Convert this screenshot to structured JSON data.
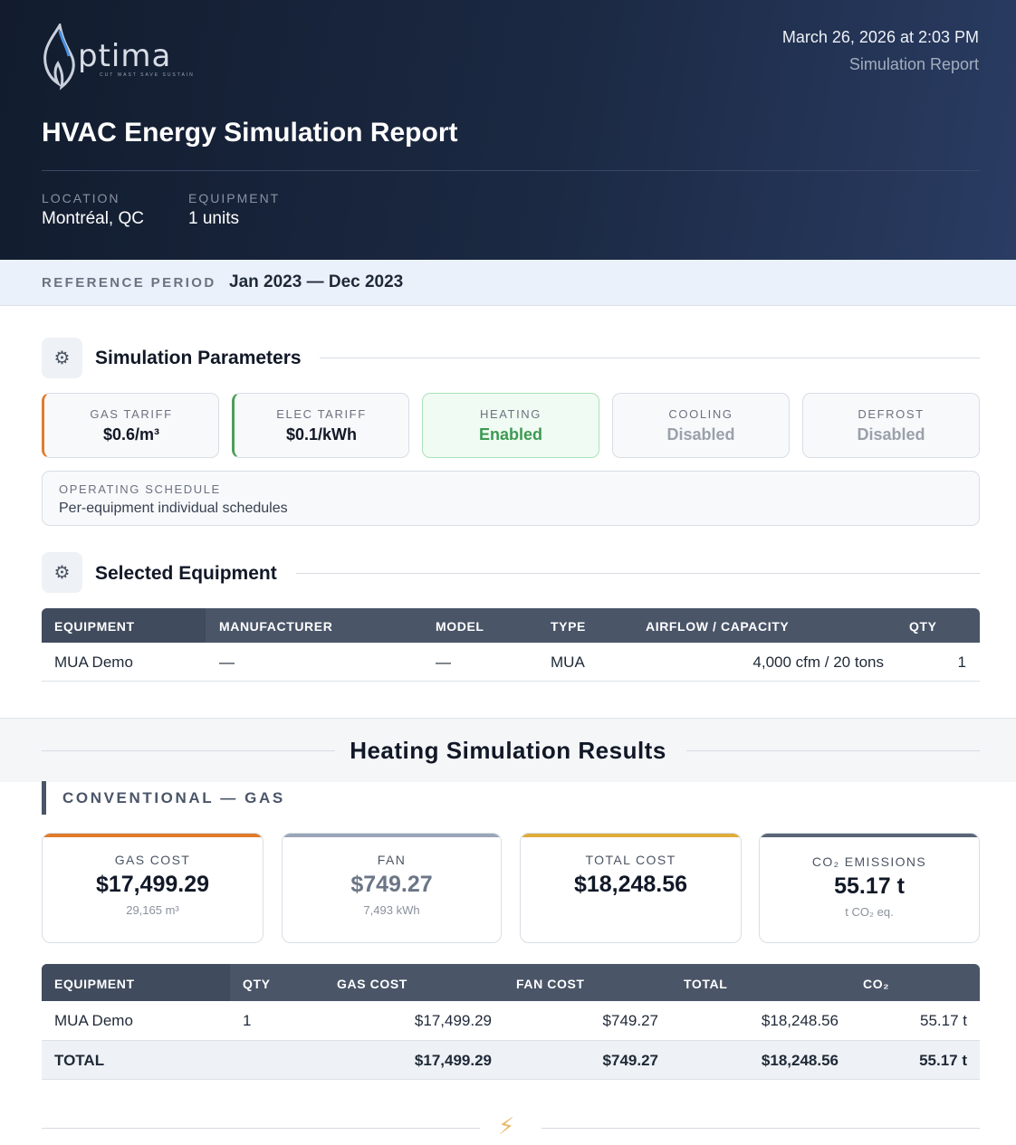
{
  "header": {
    "logo_word": "ptima",
    "logo_tagline": "CUT WAST SAVE SUSTAIN",
    "date": "March 26, 2026 at 2:03 PM",
    "subtitle": "Simulation Report",
    "title": "HVAC Energy Simulation Report",
    "location_label": "LOCATION",
    "location_value": "Montréal, QC",
    "equipment_label": "EQUIPMENT",
    "equipment_value": "1 units"
  },
  "reference": {
    "label": "REFERENCE PERIOD",
    "value": "Jan 2023 — Dec 2023"
  },
  "parameters": {
    "title": "Simulation Parameters",
    "icon": "gear-icon",
    "cards": [
      {
        "label": "GAS TARIFF",
        "value": "$0.6/m³"
      },
      {
        "label": "ELEC TARIFF",
        "value": "$0.1/kWh"
      },
      {
        "label": "HEATING",
        "value": "Enabled"
      },
      {
        "label": "COOLING",
        "value": "Disabled"
      },
      {
        "label": "DEFROST",
        "value": "Disabled"
      }
    ],
    "schedule_label": "OPERATING SCHEDULE",
    "schedule_value": "Per-equipment individual schedules",
    "colors": {
      "gas": "#e07b2b",
      "elec": "#4e9e5a",
      "enabled": "#3c9a52"
    }
  },
  "equipment": {
    "title": "Selected Equipment",
    "icon": "gear-icon",
    "columns": [
      "EQUIPMENT",
      "MANUFACTURER",
      "MODEL",
      "TYPE",
      "AIRFLOW / CAPACITY",
      "QTY"
    ],
    "rows": [
      {
        "equipment": "MUA Demo",
        "manufacturer": "—",
        "model": "—",
        "type": "MUA",
        "airflow": "4,000 cfm / 20 tons",
        "qty": "1"
      }
    ]
  },
  "results": {
    "title": "Heating Simulation Results",
    "subsection": "CONVENTIONAL — GAS",
    "kpis": [
      {
        "label": "GAS COST",
        "value": "$17,499.29",
        "sub": "29,165 m³",
        "color": "#e07b2b"
      },
      {
        "label": "FAN",
        "value": "$749.27",
        "sub": "7,493 kWh",
        "color": "#9aa6b8"
      },
      {
        "label": "TOTAL COST",
        "value": "$18,248.56",
        "sub": "",
        "color": "#e0ad3a"
      },
      {
        "label": "CO₂ EMISSIONS",
        "value": "55.17 t",
        "sub": "t CO₂ eq.",
        "color": "#5a6577"
      }
    ],
    "columns": [
      "EQUIPMENT",
      "QTY",
      "GAS COST",
      "FAN COST",
      "TOTAL",
      "CO₂"
    ],
    "rows": [
      {
        "equipment": "MUA Demo",
        "qty": "1",
        "gas_cost": "$17,499.29",
        "fan_cost": "$749.27",
        "total": "$18,248.56",
        "co2": "55.17 t"
      }
    ],
    "total_row": {
      "label": "TOTAL",
      "gas_cost": "$17,499.29",
      "fan_cost": "$749.27",
      "total": "$18,248.56",
      "co2": "55.17 t"
    }
  },
  "footer": {
    "icon": "lightning-bolt-icon"
  }
}
